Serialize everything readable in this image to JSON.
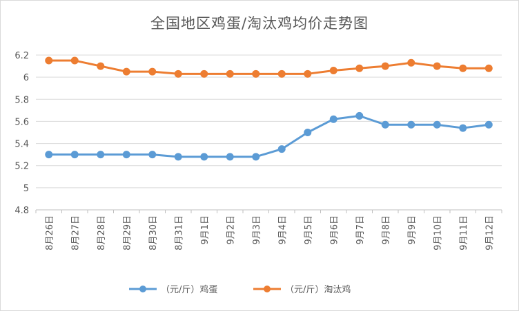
{
  "chart_data": {
    "type": "line",
    "title": "全国地区鸡蛋/淘汰鸡均价走势图",
    "categories": [
      "8月26日",
      "8月27日",
      "8月28日",
      "8月29日",
      "8月30日",
      "8月31日",
      "9月1日",
      "9月2日",
      "9月3日",
      "9月4日",
      "9月5日",
      "9月6日",
      "9月7日",
      "9月8日",
      "9月9日",
      "9月10日",
      "9月11日",
      "9月12日"
    ],
    "series": [
      {
        "name": "（元/斤）鸡蛋",
        "color": "#5b9bd5",
        "values": [
          5.3,
          5.3,
          5.3,
          5.3,
          5.3,
          5.28,
          5.28,
          5.28,
          5.28,
          5.35,
          5.5,
          5.62,
          5.65,
          5.57,
          5.57,
          5.57,
          5.54,
          5.57
        ]
      },
      {
        "name": "（元/斤）淘汰鸡",
        "color": "#ed7d31",
        "values": [
          6.15,
          6.15,
          6.1,
          6.05,
          6.05,
          6.03,
          6.03,
          6.03,
          6.03,
          6.03,
          6.03,
          6.06,
          6.08,
          6.1,
          6.13,
          6.1,
          6.08,
          6.08
        ]
      }
    ],
    "ylim": [
      4.8,
      6.2
    ],
    "yticks": [
      "4.8",
      "5",
      "5.2",
      "5.4",
      "5.6",
      "5.8",
      "6",
      "6.2"
    ],
    "ytick_values": [
      4.8,
      5.0,
      5.2,
      5.4,
      5.6,
      5.8,
      6.0,
      6.2
    ],
    "grid": true,
    "legend_position": "bottom"
  }
}
